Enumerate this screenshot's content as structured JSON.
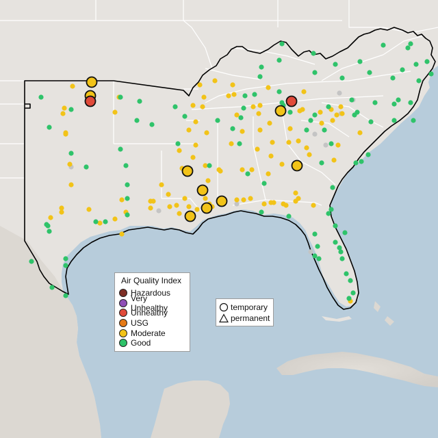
{
  "legend": {
    "title": "Air Quality Index",
    "categories": [
      {
        "label": "Hazardous",
        "color": "#7e2f25"
      },
      {
        "label": "Very Unhealthy",
        "color": "#8f4fb6"
      },
      {
        "label": "Unhealthy",
        "color": "#e04a3a"
      },
      {
        "label": "USG",
        "color": "#e57a16"
      },
      {
        "label": "Moderate",
        "color": "#f2c318"
      },
      {
        "label": "Good",
        "color": "#2fc36a"
      }
    ]
  },
  "shape_legend": {
    "temporary": "temporary",
    "permanent": "permanent"
  },
  "colors": {
    "ocean": "#b7ccdb",
    "land": "#e6e3df",
    "land_south": "#d9d6d1",
    "state_border": "#ffffff",
    "region_outline": "#000000",
    "no_data": "#c4c4c4"
  },
  "map_layers": [
    "land",
    "state-borders",
    "region-outline",
    "monitors",
    "legend"
  ],
  "monitor_counts": {
    "good": 100,
    "moderate": 98,
    "large_moderate": 10,
    "large_unhealthy": 2,
    "no_data": 9
  }
}
